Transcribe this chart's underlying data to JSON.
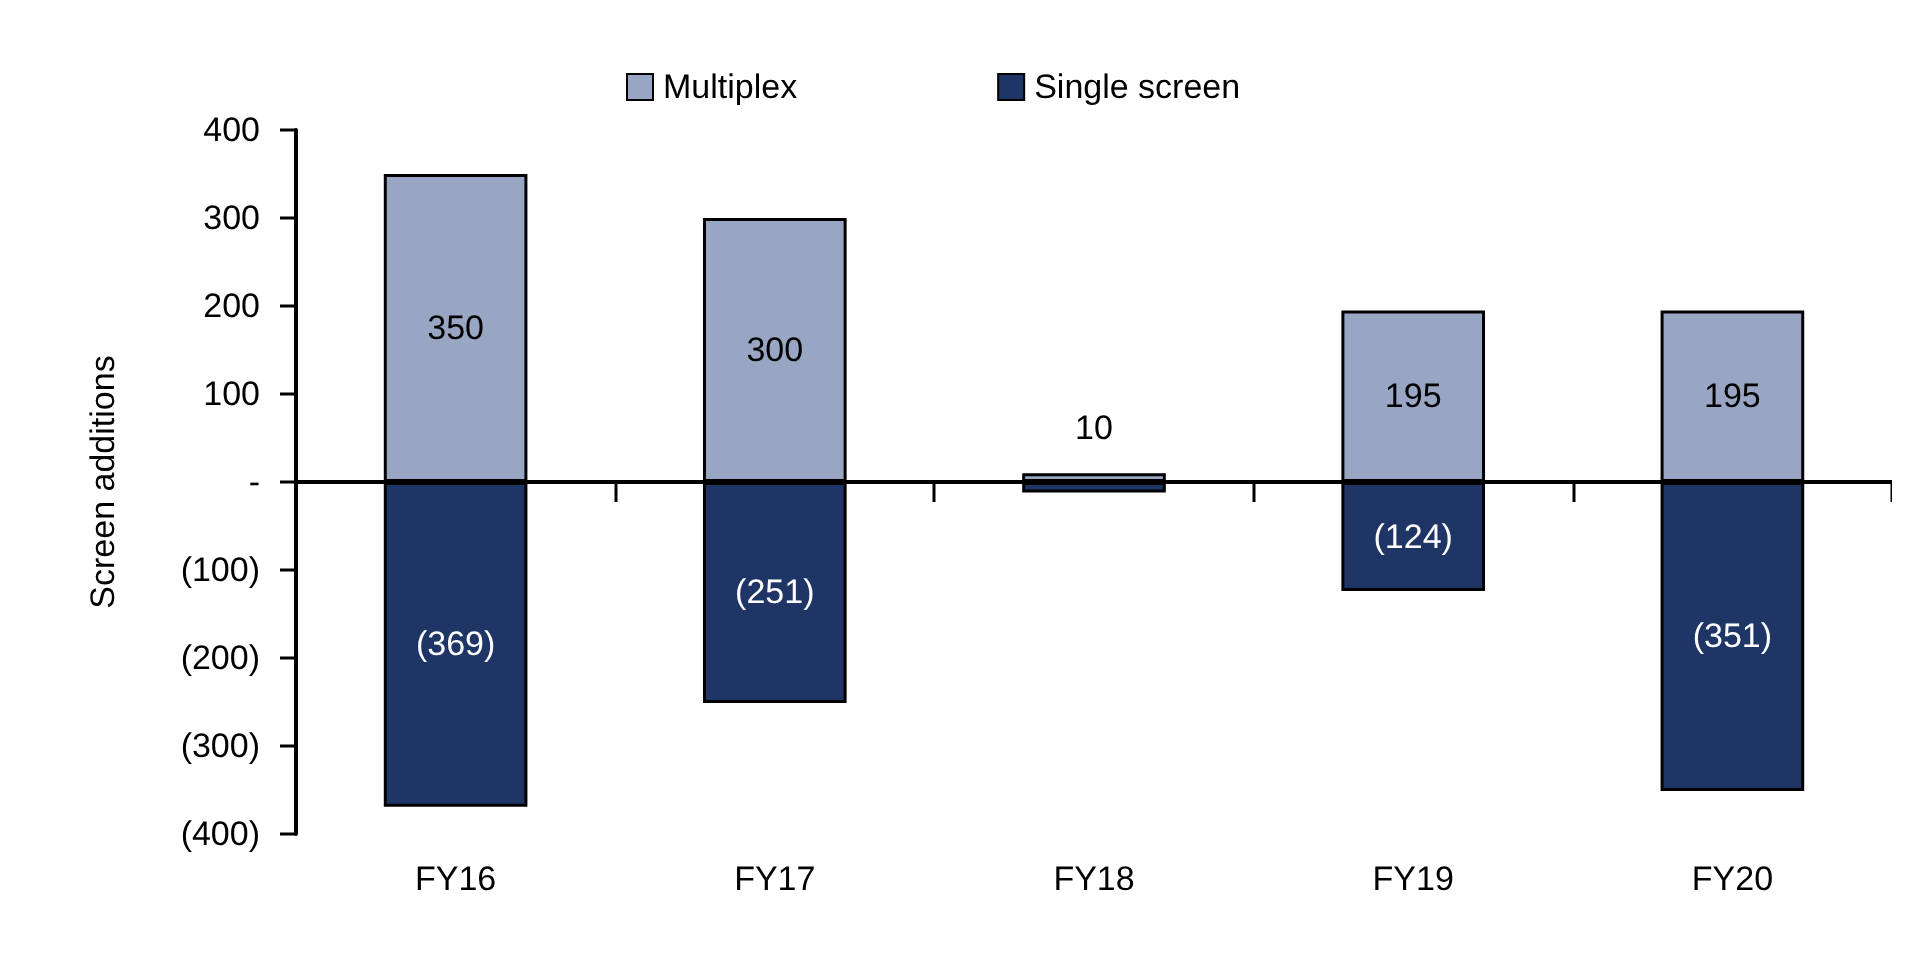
{
  "chart_data": {
    "type": "bar",
    "ylabel": "Screen additions",
    "categories": [
      "FY16",
      "FY17",
      "FY18",
      "FY19",
      "FY20"
    ],
    "stacked": true,
    "series": [
      {
        "name": "Multiplex",
        "color": "#98a6c4",
        "values": [
          350,
          300,
          10,
          195,
          195
        ],
        "value_labels": [
          "350",
          "300",
          "10",
          "195",
          "195"
        ]
      },
      {
        "name": "Single screen",
        "color": "#1f3566",
        "values": [
          -369,
          -251,
          -12,
          -124,
          -351
        ],
        "value_labels": [
          "(369)",
          "(251)",
          null,
          "(124)",
          "(351)"
        ]
      }
    ],
    "ylim": [
      -400,
      400
    ],
    "yticks": [
      {
        "value": -400,
        "label": "(400)"
      },
      {
        "value": -300,
        "label": "(300)"
      },
      {
        "value": -200,
        "label": "(200)"
      },
      {
        "value": -100,
        "label": "(100)"
      },
      {
        "value": 0,
        "label": "-"
      },
      100,
      200,
      300,
      400
    ],
    "legend": "top"
  }
}
